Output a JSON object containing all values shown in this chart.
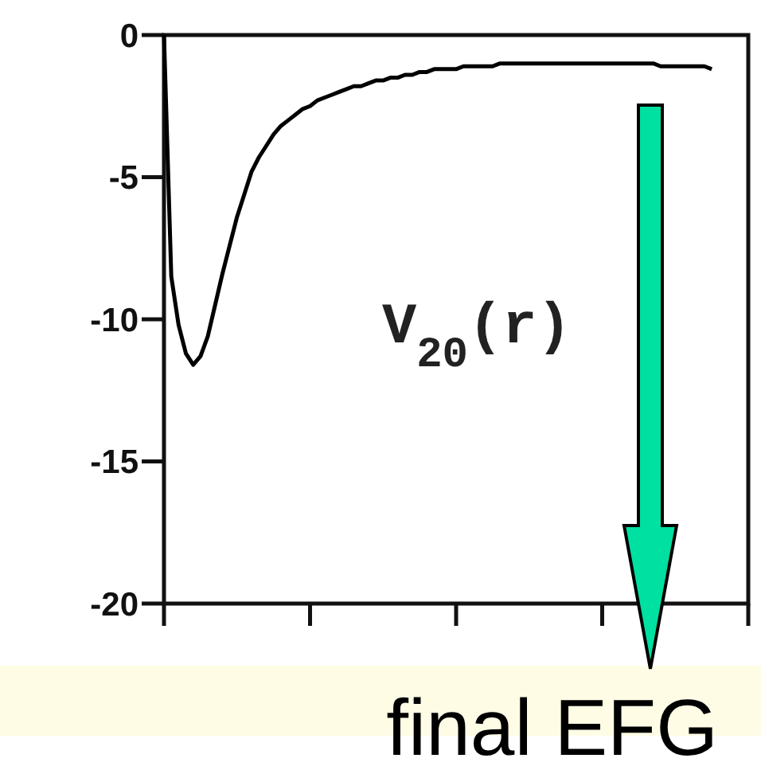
{
  "chart_data": {
    "type": "line",
    "categories": [
      null,
      null,
      null,
      null,
      null,
      null,
      null,
      null,
      null,
      null,
      null,
      null,
      null,
      null,
      null,
      null,
      null,
      null,
      null,
      null,
      null,
      null,
      null,
      null,
      null,
      null,
      null,
      null,
      null,
      null,
      null,
      null,
      null,
      null,
      null,
      null,
      null,
      null,
      null,
      null,
      null,
      null,
      null,
      null,
      null,
      null,
      null,
      null,
      null,
      null,
      null,
      null,
      null,
      null,
      null,
      null,
      null,
      null,
      null,
      null,
      null,
      null,
      null,
      null,
      null,
      null,
      null,
      null,
      null,
      null,
      null,
      null,
      null,
      null,
      null,
      null
    ],
    "series": [
      {
        "color": "#000000",
        "values": [
          0,
          -8.5,
          -10.2,
          -11.2,
          -11.6,
          -11.3,
          -10.6,
          -9.5,
          -8.4,
          -7.4,
          -6.4,
          -5.6,
          -4.8,
          -4.3,
          -3.9,
          -3.5,
          -3.2,
          -3.0,
          -2.8,
          -2.6,
          -2.5,
          -2.3,
          -2.2,
          -2.1,
          -2.0,
          -1.9,
          -1.8,
          -1.8,
          -1.7,
          -1.6,
          -1.6,
          -1.5,
          -1.5,
          -1.4,
          -1.4,
          -1.3,
          -1.3,
          -1.2,
          -1.2,
          -1.2,
          -1.2,
          -1.1,
          -1.1,
          -1.1,
          -1.1,
          -1.1,
          -1.0,
          -1.0,
          -1.0,
          -1.0,
          -1.0,
          -1.0,
          -1.0,
          -1.0,
          -1.0,
          -1.0,
          -1.0,
          -1.0,
          -1.0,
          -1.0,
          -1.0,
          -1.0,
          -1.0,
          -1.0,
          -1.0,
          -1.0,
          -1.0,
          -1.0,
          -1.1,
          -1.1,
          -1.1,
          -1.1,
          -1.1,
          -1.1,
          -1.1,
          -1.2
        ]
      }
    ],
    "ylim": [
      -20,
      0
    ],
    "yticks": [
      0,
      -5,
      -10,
      -15,
      -20
    ],
    "tick_labels": "y",
    "marker": "none",
    "line_style": "solid",
    "annotations": [
      "V$_{20}$(r)",
      "final EFG"
    ]
  }
}
